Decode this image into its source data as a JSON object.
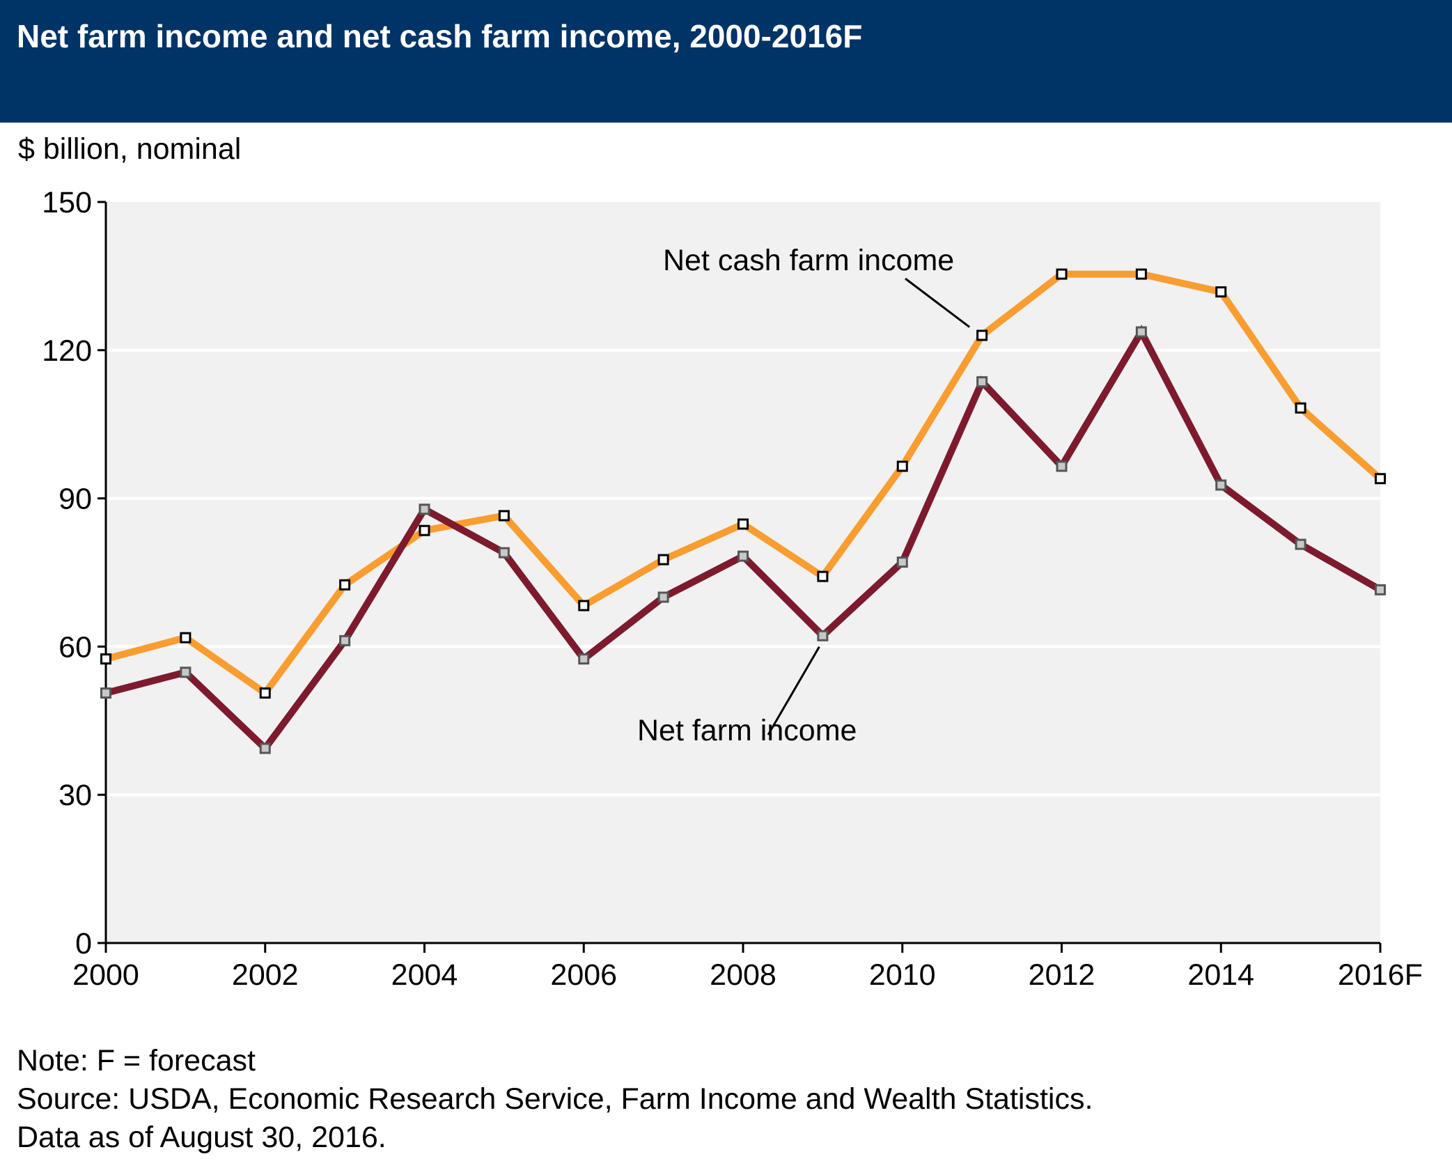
{
  "chart_data": {
    "type": "line",
    "title": "Net farm income and net cash farm income, 2000-2016F",
    "unit_label": "$ billion, nominal",
    "x": [
      "2000",
      "2001",
      "2002",
      "2003",
      "2004",
      "2005",
      "2006",
      "2007",
      "2008",
      "2009",
      "2010",
      "2011",
      "2012",
      "2013",
      "2014",
      "2015",
      "2016F"
    ],
    "x_tick_labels": [
      "2000",
      "2002",
      "2004",
      "2006",
      "2008",
      "2010",
      "2012",
      "2014",
      "2016F"
    ],
    "ylim": [
      0,
      150
    ],
    "y_ticks": [
      0,
      30,
      60,
      90,
      120,
      150
    ],
    "grid": "horizontal",
    "series": [
      {
        "name": "Net cash farm income",
        "color": "#f99d31",
        "values": [
          57.5,
          61.8,
          50.6,
          72.5,
          83.5,
          86.5,
          68.3,
          77.6,
          84.8,
          74.2,
          96.5,
          123.0,
          135.4,
          135.4,
          131.8,
          108.3,
          94.0
        ]
      },
      {
        "name": "Net farm income",
        "color": "#7d1a2e",
        "values": [
          50.6,
          54.8,
          39.4,
          61.2,
          87.8,
          79.0,
          57.5,
          70.0,
          78.3,
          62.2,
          77.1,
          113.6,
          96.5,
          123.7,
          92.7,
          80.7,
          71.5
        ]
      }
    ],
    "annotations": [
      {
        "text": "Net cash farm income",
        "series": "Net cash farm income"
      },
      {
        "text": "Net farm income",
        "series": "Net farm income"
      }
    ]
  },
  "notes": {
    "note": "Note: F = forecast",
    "source": "Source: USDA, Economic Research Service, Farm Income and Wealth Statistics.",
    "data_date": "Data as of August 30, 2016."
  },
  "colors": {
    "header_bg": "#003366",
    "plot_bg": "#f1f1f1",
    "gridline": "#ffffff",
    "marker_fill_cash": "#ffffff",
    "marker_fill_net": "#c8c8c8"
  }
}
